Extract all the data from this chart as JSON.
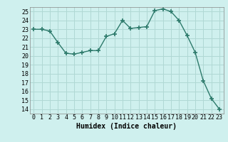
{
  "x": [
    0,
    1,
    2,
    3,
    4,
    5,
    6,
    7,
    8,
    9,
    10,
    11,
    12,
    13,
    14,
    15,
    16,
    17,
    18,
    19,
    20,
    21,
    22,
    23
  ],
  "y": [
    23.0,
    23.0,
    22.8,
    21.5,
    20.3,
    20.2,
    20.4,
    20.6,
    20.6,
    22.2,
    22.5,
    24.0,
    23.1,
    23.2,
    23.3,
    25.1,
    25.3,
    25.0,
    24.0,
    22.3,
    20.4,
    17.2,
    15.2,
    14.0
  ],
  "line_color": "#2d7a6b",
  "marker": "+",
  "markersize": 4,
  "markeredgewidth": 1.2,
  "linewidth": 1.0,
  "xlabel": "Humidex (Indice chaleur)",
  "xlabel_fontsize": 7,
  "bg_color": "#cff0ee",
  "grid_color": "#b0d8d4",
  "ylim": [
    13.5,
    25.5
  ],
  "yticks": [
    14,
    15,
    16,
    17,
    18,
    19,
    20,
    21,
    22,
    23,
    24,
    25
  ],
  "xlim": [
    -0.5,
    23.5
  ],
  "xticks": [
    0,
    1,
    2,
    3,
    4,
    5,
    6,
    7,
    8,
    9,
    10,
    11,
    12,
    13,
    14,
    15,
    16,
    17,
    18,
    19,
    20,
    21,
    22,
    23
  ],
  "tick_labelsize": 6
}
